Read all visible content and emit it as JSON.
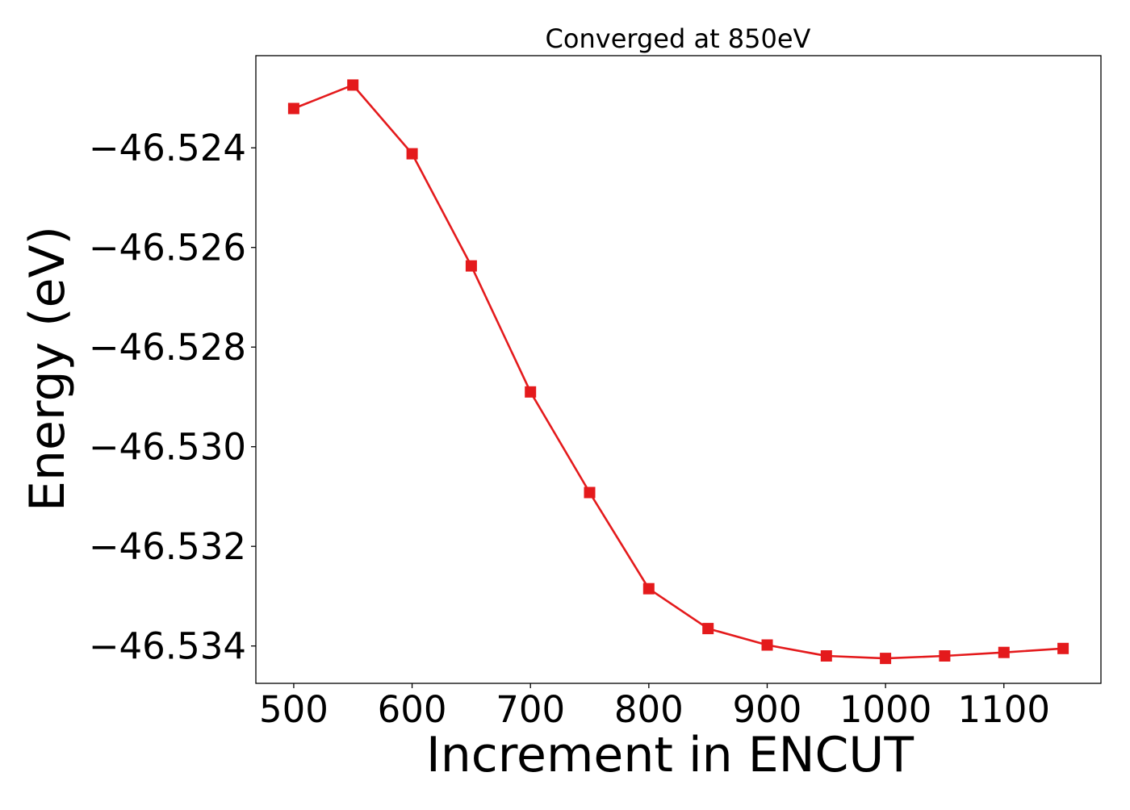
{
  "chart_data": {
    "type": "line",
    "title": "Converged at 850eV",
    "xlabel": "Increment in ENCUT",
    "ylabel": "Energy (eV)",
    "xlim": [
      468,
      1182
    ],
    "ylim": [
      -46.53475,
      -46.52215
    ],
    "xticks": [
      500,
      600,
      700,
      800,
      900,
      1000,
      1100
    ],
    "xtick_labels": [
      "500",
      "600",
      "700",
      "800",
      "900",
      "1000",
      "1100"
    ],
    "yticks": [
      -46.524,
      -46.526,
      -46.528,
      -46.53,
      -46.532,
      -46.534
    ],
    "ytick_labels": [
      "−46.524",
      "−46.526",
      "−46.528",
      "−46.530",
      "−46.532",
      "−46.534"
    ],
    "grid": false,
    "series": [
      {
        "color": "#e41a1c",
        "marker": "square",
        "x": [
          500,
          550,
          600,
          650,
          700,
          750,
          800,
          850,
          900,
          950,
          1000,
          1050,
          1100,
          1150
        ],
        "y": [
          -46.52321,
          -46.52274,
          -46.52412,
          -46.52637,
          -46.5289,
          -46.53092,
          -46.53285,
          -46.53365,
          -46.53398,
          -46.5342,
          -46.53425,
          -46.5342,
          -46.53413,
          -46.53405
        ]
      }
    ]
  }
}
